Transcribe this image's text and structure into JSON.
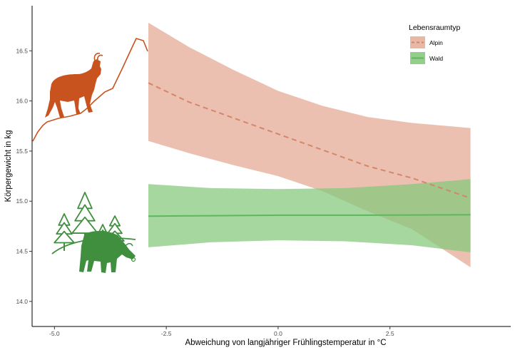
{
  "chart_data": {
    "type": "line",
    "xlabel": "Abweichung von langjähriger Frühlingstemperatur in °C",
    "ylabel": "Körpergewicht in kg",
    "xlim": [
      -5.5,
      5.2
    ],
    "ylim": [
      13.75,
      16.95
    ],
    "x_ticks": [
      -5.0,
      -2.5,
      0.0,
      2.5
    ],
    "x_tick_labels": [
      "-5.0",
      "-2.5",
      "0.0",
      "2.5"
    ],
    "y_ticks": [
      14.0,
      14.5,
      15.0,
      15.5,
      16.0,
      16.5
    ],
    "y_tick_labels": [
      "14.0",
      "14.5",
      "15.0",
      "15.5",
      "16.0",
      "16.5"
    ],
    "grid": false,
    "legend": {
      "title": "Lebensraumtyp",
      "position": "top-right",
      "entries": [
        {
          "label": "Alpin",
          "style": "dashed",
          "color": "#d5866a",
          "fill": "#e9b8a4"
        },
        {
          "label": "Wald",
          "style": "solid",
          "color": "#5cb85c",
          "fill": "#93cf8b"
        }
      ]
    },
    "series": [
      {
        "name": "Alpin",
        "color": "#d5866a",
        "fill": "#e3a891",
        "line_style": "dashed",
        "x": [
          -2.9,
          -2.0,
          -1.0,
          0.0,
          1.0,
          2.0,
          3.0,
          4.3
        ],
        "y": [
          16.18,
          15.99,
          15.83,
          15.67,
          15.51,
          15.35,
          15.23,
          15.03
        ],
        "lower": [
          15.6,
          15.48,
          15.36,
          15.25,
          15.1,
          14.9,
          14.72,
          14.34
        ],
        "upper": [
          16.78,
          16.54,
          16.31,
          16.1,
          15.95,
          15.84,
          15.78,
          15.73
        ]
      },
      {
        "name": "Wald",
        "color": "#5cb85c",
        "fill": "#82c77a",
        "line_style": "solid",
        "x": [
          -2.9,
          -1.5,
          0.0,
          1.5,
          3.0,
          4.3
        ],
        "y": [
          14.85,
          14.855,
          14.86,
          14.86,
          14.862,
          14.865
        ],
        "lower": [
          14.54,
          14.59,
          14.61,
          14.6,
          14.56,
          14.49
        ],
        "upper": [
          15.17,
          15.13,
          15.12,
          15.13,
          15.17,
          15.22
        ]
      }
    ],
    "decorations": [
      {
        "kind": "chamois-silhouette",
        "icon": "chamois-icon",
        "color": "#c8531f"
      },
      {
        "kind": "mountain-slope-line",
        "color": "#c8531f"
      },
      {
        "kind": "forest-deer-silhouette",
        "icon": "deer-icon",
        "color": "#3f8f3f"
      }
    ]
  }
}
